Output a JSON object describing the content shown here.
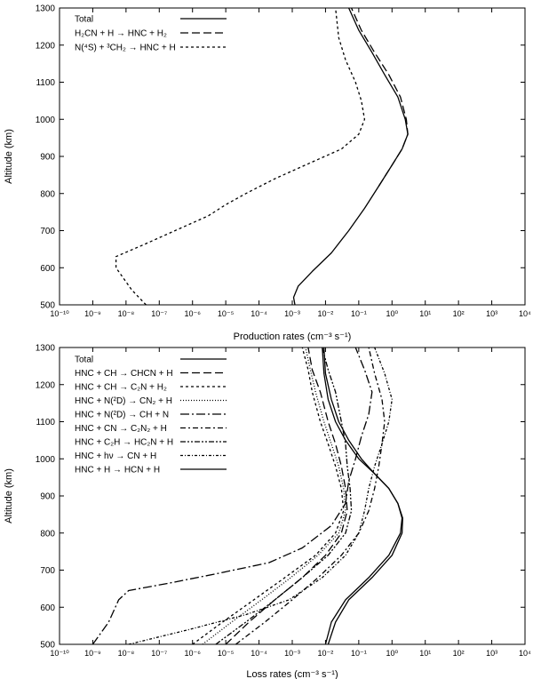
{
  "chart_data": [
    {
      "type": "line",
      "xlabel": "Production rates (cm⁻³ s⁻¹)",
      "ylabel": "Altitude (km)",
      "xscale": "log",
      "xlim": [
        1e-10,
        10000.0
      ],
      "ylim": [
        500,
        1300
      ],
      "x_tick_labels": [
        "10⁻¹⁰",
        "10⁻⁹",
        "10⁻⁸",
        "10⁻⁷",
        "10⁻⁶",
        "10⁻⁵",
        "10⁻⁴",
        "10⁻³",
        "10⁻²",
        "10⁻¹",
        "10⁰",
        "10¹",
        "10²",
        "10³",
        "10⁴"
      ],
      "y_tick_labels": [
        "500",
        "600",
        "700",
        "800",
        "900",
        "1000",
        "1100",
        "1200",
        "1300"
      ],
      "legend_position": "top-left",
      "series": [
        {
          "name": "Total",
          "dash": "solid",
          "points": [
            [
              0.0012,
              500
            ],
            [
              0.0011,
              520
            ],
            [
              0.0015,
              550
            ],
            [
              0.004,
              590
            ],
            [
              0.015,
              640
            ],
            [
              0.05,
              700
            ],
            [
              0.15,
              760
            ],
            [
              0.4,
              820
            ],
            [
              0.9,
              870
            ],
            [
              2.0,
              920
            ],
            [
              3.0,
              960
            ],
            [
              2.5,
              1000
            ],
            [
              1.5,
              1060
            ],
            [
              0.6,
              1120
            ],
            [
              0.25,
              1180
            ],
            [
              0.1,
              1240
            ],
            [
              0.05,
              1300
            ]
          ]
        },
        {
          "name": "H₂CN + H → HNC + H₂",
          "dash": "long-dash",
          "points": [
            [
              0.4,
              820
            ],
            [
              0.9,
              870
            ],
            [
              2.0,
              920
            ],
            [
              3.0,
              960
            ],
            [
              2.7,
              1000
            ],
            [
              1.8,
              1060
            ],
            [
              0.8,
              1120
            ],
            [
              0.3,
              1180
            ],
            [
              0.12,
              1240
            ],
            [
              0.06,
              1300
            ]
          ]
        },
        {
          "name": "N(⁴S) + ³CH₂ → HNC + H",
          "dash": "short-dash",
          "points": [
            [
              4e-08,
              500
            ],
            [
              1.5e-08,
              540
            ],
            [
              5e-09,
              600
            ],
            [
              5e-09,
              630
            ],
            [
              3e-08,
              660
            ],
            [
              3e-07,
              700
            ],
            [
              3e-06,
              740
            ],
            [
              1e-05,
              770
            ],
            [
              4e-05,
              800
            ],
            [
              0.0003,
              840
            ],
            [
              0.003,
              880
            ],
            [
              0.03,
              920
            ],
            [
              0.1,
              960
            ],
            [
              0.15,
              1000
            ],
            [
              0.12,
              1050
            ],
            [
              0.08,
              1100
            ],
            [
              0.04,
              1160
            ],
            [
              0.025,
              1220
            ],
            [
              0.02,
              1300
            ]
          ]
        }
      ]
    },
    {
      "type": "line",
      "xlabel": "Loss rates (cm⁻³ s⁻¹)",
      "ylabel": "Altitude (km)",
      "xscale": "log",
      "xlim": [
        1e-10,
        10000.0
      ],
      "ylim": [
        500,
        1300
      ],
      "x_tick_labels": [
        "10⁻¹⁰",
        "10⁻⁹",
        "10⁻⁸",
        "10⁻⁷",
        "10⁻⁶",
        "10⁻⁵",
        "10⁻⁴",
        "10⁻³",
        "10⁻²",
        "10⁻¹",
        "10⁰",
        "10¹",
        "10²",
        "10³",
        "10⁴"
      ],
      "y_tick_labels": [
        "500",
        "600",
        "700",
        "800",
        "900",
        "1000",
        "1100",
        "1200",
        "1300"
      ],
      "legend_position": "top-left",
      "series": [
        {
          "name": "Total",
          "dash": "solid",
          "points": [
            [
              0.01,
              500
            ],
            [
              0.015,
              560
            ],
            [
              0.04,
              620
            ],
            [
              0.2,
              680
            ],
            [
              0.8,
              740
            ],
            [
              1.8,
              800
            ],
            [
              2.0,
              840
            ],
            [
              1.5,
              880
            ],
            [
              0.8,
              920
            ],
            [
              0.3,
              960
            ],
            [
              0.1,
              1000
            ],
            [
              0.04,
              1050
            ],
            [
              0.02,
              1100
            ],
            [
              0.012,
              1160
            ],
            [
              0.009,
              1230
            ],
            [
              0.008,
              1300
            ]
          ]
        },
        {
          "name": "HNC + CH → CHCN + H",
          "dash": "long-dash",
          "points": [
            [
              1e-05,
              500
            ],
            [
              5e-05,
              560
            ],
            [
              0.0003,
              620
            ],
            [
              0.002,
              680
            ],
            [
              0.01,
              740
            ],
            [
              0.03,
              800
            ],
            [
              0.045,
              860
            ],
            [
              0.04,
              920
            ],
            [
              0.03,
              980
            ],
            [
              0.02,
              1040
            ],
            [
              0.012,
              1100
            ],
            [
              0.007,
              1180
            ],
            [
              0.004,
              1240
            ],
            [
              0.003,
              1300
            ]
          ]
        },
        {
          "name": "HNC + CH → C₂N + H₂",
          "dash": "short-dash",
          "points": [
            [
              1e-06,
              500
            ],
            [
              8e-06,
              560
            ],
            [
              7e-05,
              620
            ],
            [
              0.0006,
              680
            ],
            [
              0.005,
              740
            ],
            [
              0.02,
              800
            ],
            [
              0.035,
              860
            ],
            [
              0.03,
              920
            ],
            [
              0.02,
              980
            ],
            [
              0.012,
              1040
            ],
            [
              0.007,
              1100
            ],
            [
              0.004,
              1180
            ],
            [
              0.003,
              1240
            ],
            [
              0.002,
              1300
            ]
          ]
        },
        {
          "name": "HNC + N(²D) → CN₂ + H",
          "dash": "dotted",
          "points": [
            [
              2e-06,
              500
            ],
            [
              1.5e-05,
              560
            ],
            [
              0.00012,
              620
            ],
            [
              0.0009,
              680
            ],
            [
              0.006,
              740
            ],
            [
              0.025,
              800
            ],
            [
              0.04,
              860
            ],
            [
              0.035,
              920
            ],
            [
              0.025,
              980
            ],
            [
              0.015,
              1040
            ],
            [
              0.009,
              1100
            ],
            [
              0.005,
              1180
            ],
            [
              0.0035,
              1240
            ],
            [
              0.0025,
              1300
            ]
          ]
        },
        {
          "name": "HNC + N(²D) → CH + N",
          "dash": "long-dash-dot",
          "points": [
            [
              1e-09,
              500
            ],
            [
              3e-09,
              560
            ],
            [
              6e-09,
              620
            ],
            [
              1.2e-08,
              645
            ],
            [
              2e-07,
              665
            ],
            [
              5e-06,
              690
            ],
            [
              0.0002,
              720
            ],
            [
              0.002,
              760
            ],
            [
              0.015,
              820
            ],
            [
              0.04,
              880
            ],
            [
              0.05,
              940
            ],
            [
              0.08,
              1000
            ],
            [
              0.12,
              1060
            ],
            [
              0.2,
              1120
            ],
            [
              0.25,
              1180
            ],
            [
              0.15,
              1240
            ],
            [
              0.08,
              1300
            ]
          ]
        },
        {
          "name": "HNC + CN → C₂N₂ + H",
          "dash": "dash-dot",
          "points": [
            [
              2e-05,
              500
            ],
            [
              0.00015,
              560
            ],
            [
              0.001,
              620
            ],
            [
              0.006,
              680
            ],
            [
              0.03,
              740
            ],
            [
              0.1,
              800
            ],
            [
              0.2,
              860
            ],
            [
              0.3,
              920
            ],
            [
              0.4,
              980
            ],
            [
              0.5,
              1040
            ],
            [
              0.6,
              1100
            ],
            [
              0.5,
              1160
            ],
            [
              0.3,
              1230
            ],
            [
              0.2,
              1300
            ]
          ]
        },
        {
          "name": "HNC + C₂H → HC₂N + H",
          "dash": "dash-dot-dot",
          "points": [
            [
              5e-06,
              500
            ],
            [
              4e-05,
              560
            ],
            [
              0.0003,
              620
            ],
            [
              0.002,
              680
            ],
            [
              0.012,
              740
            ],
            [
              0.04,
              800
            ],
            [
              0.06,
              860
            ],
            [
              0.055,
              920
            ],
            [
              0.045,
              980
            ],
            [
              0.04,
              1040
            ],
            [
              0.03,
              1100
            ],
            [
              0.02,
              1180
            ],
            [
              0.012,
              1240
            ],
            [
              0.008,
              1300
            ]
          ]
        },
        {
          "name": "HNC + hν → CN + H",
          "dash": "dot-dash",
          "points": [
            [
              1.2e-08,
              500
            ],
            [
              8e-07,
              540
            ],
            [
              4e-05,
              580
            ],
            [
              0.0008,
              620
            ],
            [
              0.008,
              680
            ],
            [
              0.04,
              740
            ],
            [
              0.1,
              800
            ],
            [
              0.15,
              860
            ],
            [
              0.2,
              920
            ],
            [
              0.3,
              980
            ],
            [
              0.5,
              1040
            ],
            [
              0.8,
              1100
            ],
            [
              1.0,
              1160
            ],
            [
              0.6,
              1230
            ],
            [
              0.3,
              1300
            ]
          ]
        },
        {
          "name": "HNC + H → HCN + H",
          "dash": "solid",
          "points": [
            [
              0.012,
              500
            ],
            [
              0.02,
              560
            ],
            [
              0.05,
              620
            ],
            [
              0.25,
              680
            ],
            [
              1.0,
              740
            ],
            [
              2.0,
              800
            ],
            [
              2.1,
              840
            ],
            [
              1.5,
              880
            ],
            [
              0.8,
              920
            ],
            [
              0.3,
              960
            ],
            [
              0.12,
              1000
            ],
            [
              0.05,
              1050
            ],
            [
              0.025,
              1100
            ],
            [
              0.015,
              1160
            ],
            [
              0.01,
              1230
            ],
            [
              0.009,
              1300
            ]
          ]
        }
      ]
    }
  ]
}
